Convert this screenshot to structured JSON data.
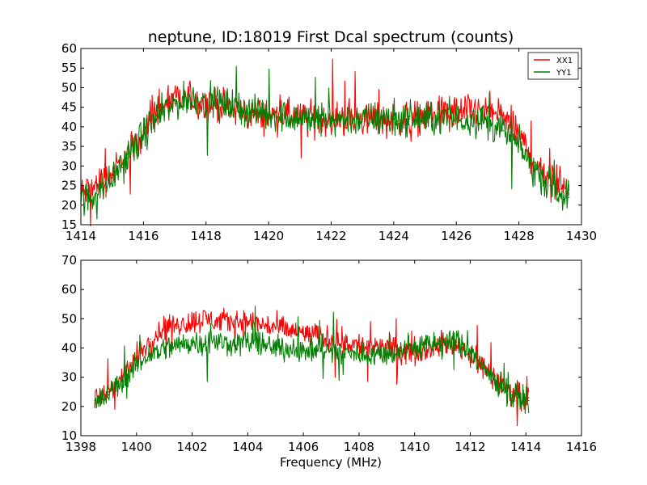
{
  "chart_data": [
    {
      "type": "line",
      "title": "neptune, ID:18019 First Dcal spectrum (counts)",
      "xlabel": "",
      "ylabel": "",
      "xlim": [
        1414,
        1430
      ],
      "ylim": [
        15,
        60
      ],
      "xticks": [
        "1414",
        "1416",
        "1418",
        "1420",
        "1422",
        "1424",
        "1426",
        "1428",
        "1430"
      ],
      "yticks": [
        "15",
        "20",
        "25",
        "30",
        "35",
        "40",
        "45",
        "50",
        "55",
        "60"
      ],
      "legend": {
        "placement": "top-right",
        "entries": [
          "XX1",
          "YY1"
        ]
      },
      "series": [
        {
          "name": "XX1",
          "color": "#ff0000",
          "x": [
            1414.0,
            1414.5,
            1415.0,
            1415.5,
            1416.0,
            1416.5,
            1417.0,
            1417.5,
            1418.0,
            1418.5,
            1419.0,
            1419.5,
            1420.0,
            1420.5,
            1421.0,
            1421.5,
            1422.0,
            1422.5,
            1423.0,
            1423.5,
            1424.0,
            1424.5,
            1425.0,
            1425.5,
            1426.0,
            1426.5,
            1427.0,
            1427.5,
            1428.0,
            1428.5,
            1429.0,
            1429.6
          ],
          "y": [
            23,
            25,
            28,
            33,
            39,
            44,
            47,
            47,
            46,
            45,
            44,
            43,
            43,
            43,
            42,
            42,
            42,
            42,
            42,
            42,
            42,
            42,
            43,
            43,
            44,
            44,
            44,
            43,
            38,
            31,
            27,
            25
          ]
        },
        {
          "name": "YY1",
          "color": "#008000",
          "x": [
            1414.0,
            1414.5,
            1415.0,
            1415.5,
            1416.0,
            1416.5,
            1417.0,
            1417.5,
            1418.0,
            1418.5,
            1419.0,
            1419.5,
            1420.0,
            1420.5,
            1421.0,
            1421.5,
            1422.0,
            1422.5,
            1423.0,
            1423.5,
            1424.0,
            1424.5,
            1425.0,
            1425.5,
            1426.0,
            1426.5,
            1427.0,
            1427.5,
            1428.0,
            1428.5,
            1429.0,
            1429.6
          ],
          "y": [
            21,
            23,
            27,
            32,
            38,
            43,
            46,
            47,
            47,
            46,
            45,
            44,
            43,
            43,
            42,
            42,
            42,
            42,
            42,
            42,
            42,
            42,
            42,
            42,
            42,
            42,
            41,
            39,
            35,
            29,
            25,
            22
          ]
        }
      ]
    },
    {
      "type": "line",
      "title": "",
      "xlabel": "Frequency (MHz)",
      "ylabel": "",
      "xlim": [
        1398,
        1416
      ],
      "ylim": [
        10,
        70
      ],
      "xticks": [
        "1398",
        "1400",
        "1402",
        "1404",
        "1406",
        "1408",
        "1410",
        "1412",
        "1414",
        "1416"
      ],
      "yticks": [
        "10",
        "20",
        "30",
        "40",
        "50",
        "60",
        "70"
      ],
      "series": [
        {
          "name": "XX1",
          "color": "#ff0000",
          "x": [
            1398.5,
            1399.0,
            1399.5,
            1400.0,
            1400.5,
            1401.0,
            1401.5,
            1402.0,
            1402.5,
            1403.0,
            1403.5,
            1404.0,
            1404.5,
            1405.0,
            1405.5,
            1406.0,
            1406.5,
            1407.0,
            1407.5,
            1408.0,
            1408.5,
            1409.0,
            1409.5,
            1410.0,
            1410.5,
            1411.0,
            1411.5,
            1412.0,
            1412.5,
            1413.0,
            1413.5,
            1414.1
          ],
          "y": [
            22,
            25,
            30,
            37,
            43,
            47,
            48,
            49,
            50,
            49,
            49,
            49,
            48,
            47,
            46,
            45,
            44,
            43,
            42,
            41,
            40,
            40,
            39,
            39,
            40,
            41,
            41,
            38,
            33,
            28,
            25,
            23
          ]
        },
        {
          "name": "YY1",
          "color": "#008000",
          "x": [
            1398.5,
            1399.0,
            1399.5,
            1400.0,
            1400.5,
            1401.0,
            1401.5,
            1402.0,
            1402.5,
            1403.0,
            1403.5,
            1404.0,
            1404.5,
            1405.0,
            1405.5,
            1406.0,
            1406.5,
            1407.0,
            1407.5,
            1408.0,
            1408.5,
            1409.0,
            1409.5,
            1410.0,
            1410.5,
            1411.0,
            1411.5,
            1412.0,
            1412.5,
            1413.0,
            1413.5,
            1414.1
          ],
          "y": [
            21,
            24,
            29,
            34,
            38,
            40,
            41,
            42,
            42,
            42,
            42,
            42,
            41,
            40,
            40,
            39,
            39,
            39,
            38,
            38,
            38,
            38,
            39,
            40,
            41,
            42,
            42,
            39,
            33,
            28,
            24,
            22
          ]
        }
      ]
    }
  ]
}
